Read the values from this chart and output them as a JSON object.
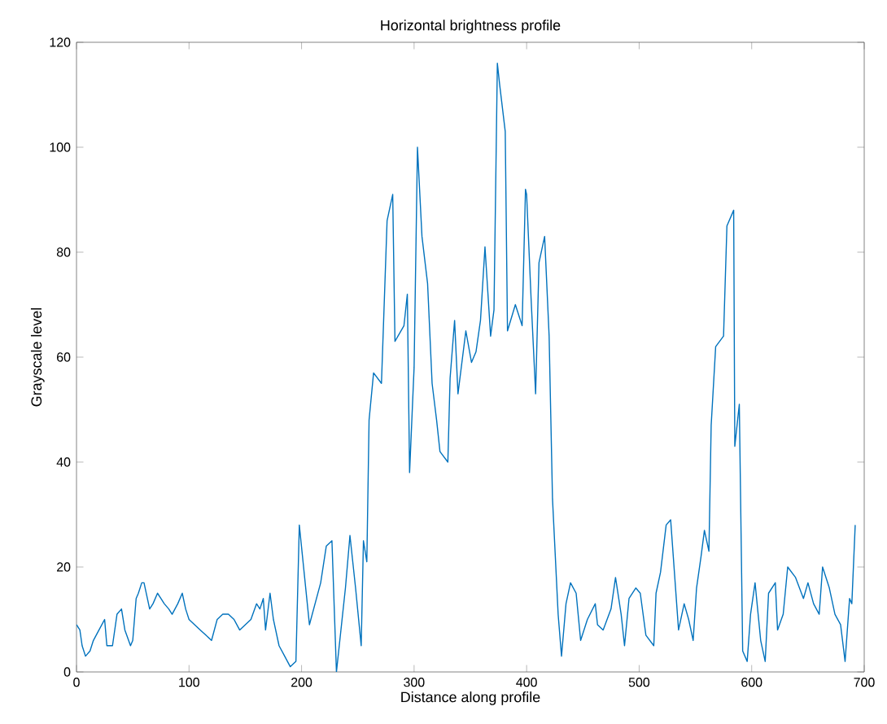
{
  "chart_data": {
    "type": "line",
    "title": "Horizontal brightness profile",
    "xlabel": "Distance along profile",
    "ylabel": "Grayscale level",
    "color": "#0072bd",
    "x": [
      0,
      3,
      5,
      8,
      12,
      15,
      20,
      25,
      27,
      32,
      36,
      40,
      43,
      48,
      50,
      53,
      55,
      58,
      60,
      63,
      65,
      68,
      72,
      75,
      78,
      82,
      85,
      90,
      94,
      97,
      100,
      105,
      110,
      115,
      120,
      125,
      130,
      135,
      140,
      145,
      150,
      155,
      160,
      163,
      166,
      168,
      172,
      175,
      180,
      185,
      190,
      195,
      198,
      207,
      217,
      222,
      227,
      231,
      239,
      243,
      248,
      253,
      255,
      258,
      260,
      264,
      271,
      276,
      281,
      283,
      291,
      294,
      296,
      300,
      303,
      307,
      312,
      316,
      320,
      323,
      330,
      332,
      336,
      339,
      346,
      351,
      355,
      359,
      363,
      368,
      371,
      374,
      376,
      381,
      383,
      390,
      396,
      399,
      400,
      404,
      408,
      411,
      416,
      420,
      423,
      428,
      431,
      435,
      439,
      444,
      448,
      454,
      461,
      463,
      468,
      475,
      479,
      484,
      487,
      491,
      497,
      501,
      506,
      513,
      515,
      519,
      524,
      528,
      532,
      535,
      540,
      544,
      548,
      551,
      555,
      558,
      562,
      564,
      568,
      575,
      578,
      584,
      585,
      589,
      592,
      596,
      599,
      603,
      608,
      612,
      615,
      621,
      623,
      628,
      632,
      639,
      646,
      650,
      655,
      660,
      663,
      669,
      674,
      679,
      683,
      687,
      689,
      692
    ],
    "values": [
      9,
      8,
      5,
      3,
      4,
      6,
      8,
      10,
      5,
      5,
      11,
      12,
      8,
      5,
      6,
      14,
      15,
      17,
      17,
      14,
      12,
      13,
      15,
      14,
      13,
      12,
      11,
      13,
      15,
      12,
      10,
      9,
      8,
      7,
      6,
      10,
      11,
      11,
      10,
      8,
      9,
      10,
      13,
      12,
      14,
      8,
      15,
      10,
      5,
      3,
      1,
      2,
      28,
      9,
      17,
      24,
      25,
      0,
      16,
      26,
      16,
      5,
      25,
      21,
      48,
      57,
      55,
      86,
      91,
      63,
      66,
      72,
      38,
      58,
      100,
      83,
      74,
      55,
      48,
      42,
      40,
      56,
      67,
      53,
      65,
      59,
      61,
      67,
      81,
      64,
      69,
      116,
      112,
      103,
      65,
      70,
      66,
      92,
      91,
      71,
      53,
      78,
      83,
      64,
      33,
      11,
      3,
      13,
      17,
      15,
      6,
      10,
      13,
      9,
      8,
      12,
      18,
      11,
      5,
      14,
      16,
      15,
      7,
      5,
      15,
      19,
      28,
      29,
      17,
      8,
      13,
      10,
      6,
      16,
      22,
      27,
      23,
      47,
      62,
      64,
      85,
      88,
      43,
      51,
      4,
      2,
      11,
      17,
      6,
      2,
      15,
      17,
      8,
      11,
      20,
      18,
      14,
      17,
      13,
      11,
      20,
      16,
      11,
      9,
      2,
      14,
      13,
      28
    ],
    "xlim": [
      0,
      700
    ],
    "ylim": [
      0,
      120
    ],
    "xticks": [
      0,
      100,
      200,
      300,
      400,
      500,
      600,
      700
    ],
    "yticks": [
      0,
      20,
      40,
      60,
      80,
      100,
      120
    ],
    "grid": false,
    "marker": "none",
    "line_style": "solid"
  }
}
